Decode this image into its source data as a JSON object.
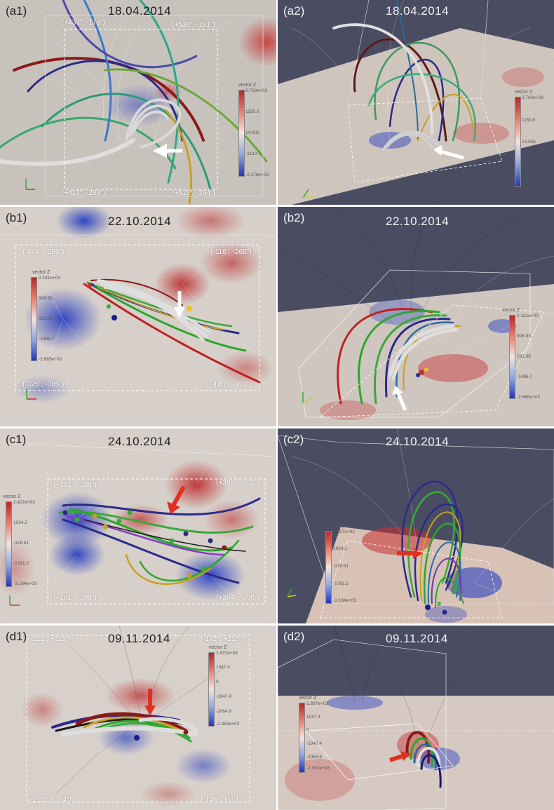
{
  "panels": {
    "a1": {
      "label": "(a1)",
      "date": "18.04.2014",
      "corners": {
        "tl": "(+437\", -175\")",
        "tr": "(+536\", -181\")",
        "bl": "(+417\", -288\")",
        "br": "(+515\", -294\")"
      },
      "colorbar": {
        "title": "vector Z",
        "ticks": [
          "2.703e+03",
          "1150.0",
          "14.005",
          "-1120.7",
          "-2.276e+03"
        ]
      }
    },
    "a2": {
      "label": "(a2)",
      "date": "18.04.2014",
      "colorbar": {
        "title": "vector Z",
        "ticks": [
          "2.703e+03",
          "1150.0",
          "14.005",
          "-1120.7",
          "-2.276e+03"
        ]
      }
    },
    "b1": {
      "label": "(b1)",
      "date": "22.10.2014",
      "corners": {
        "tl": "(-334\", -256\")",
        "tr": "(-116\", -260\")",
        "bl": "(-325\", -385\")",
        "br": "(-108\", -389\")"
      },
      "colorbar": {
        "title": "vector Z",
        "ticks": [
          "2.131e+03",
          "908.83",
          "281.06",
          "-1486.7",
          "-2.665e+03"
        ]
      }
    },
    "b2": {
      "label": "(b2)",
      "date": "22.10.2014",
      "colorbar": {
        "title": "vector Z",
        "ticks": [
          "2.131e+03",
          "908.83",
          "281.06",
          "-1486.7",
          "-2.665e+03"
        ]
      }
    },
    "c1": {
      "label": "(c1)",
      "date": "24.10.2014",
      "corners": {
        "tl": "(+171\", -288\")",
        "tr": "(+395\", -261\")",
        "bl": "(+161\", -398\")",
        "br": "(+384\", -390\")"
      },
      "colorbar": {
        "title": "vector Z",
        "ticks": [
          "2.427e+03",
          "1024.2",
          "-378.51",
          "-1781.2",
          "-3.184e+03"
        ]
      }
    },
    "c2": {
      "label": "(c2)",
      "date": "24.10.2014",
      "colorbar": {
        "title": "vector Z",
        "ticks": [
          "2.427e+03",
          "1024.2",
          "-378.51",
          "-1781.2",
          "-3.184e+03"
        ]
      }
    },
    "d1": {
      "label": "(d1)",
      "date": "09.11.2014",
      "corners": {
        "tl": "(-211\", +219\")",
        "tr": "(-142\", +216\")",
        "bl": "(-215\", +164\")",
        "br": "(-146\", +161\")"
      },
      "colorbar": {
        "title": "vector Z",
        "ticks": [
          "1.837e+03",
          "1047.4",
          "0",
          "-1047.4",
          "-2064.9",
          "-2.352e+03"
        ]
      }
    },
    "d2": {
      "label": "(d2)",
      "date": "09.11.2014",
      "colorbar": {
        "title": "vector Z",
        "ticks": [
          "1.837e+03",
          "1047.4",
          "0",
          "-1047.4",
          "-2064.9",
          "-2.352e+03"
        ]
      }
    }
  },
  "colors": {
    "positive": "#c8343a",
    "negative": "#3042c0",
    "neutral": "#e6dcd6",
    "arrow_white": "#ffffff",
    "arrow_red": "#e03020",
    "sky_dark": "#4a4d62"
  }
}
